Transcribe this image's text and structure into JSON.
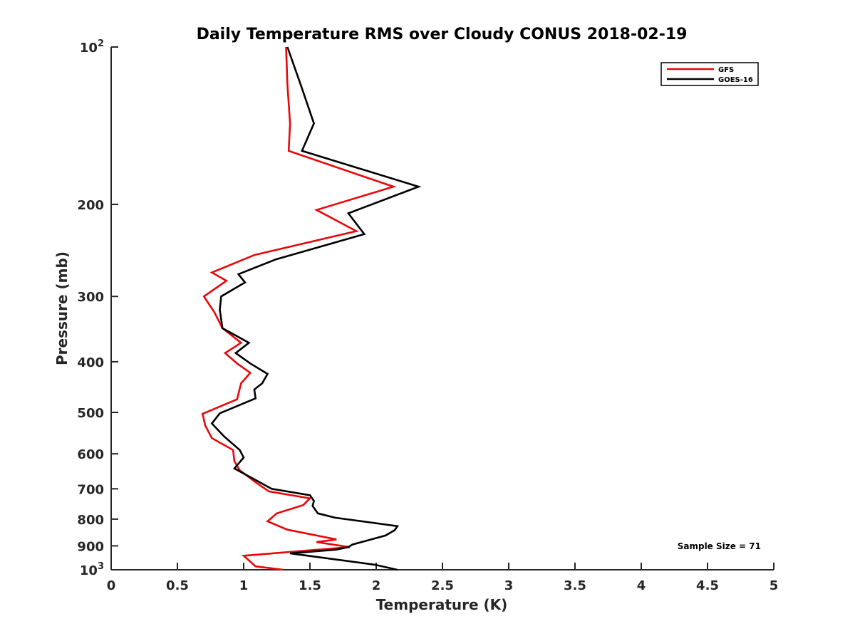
{
  "chart_data": {
    "type": "line",
    "title": "Daily Temperature RMS over Cloudy CONUS 2018-02-19",
    "xlabel": "Temperature (K)",
    "ylabel": "Pressure (mb)",
    "xlim": [
      0,
      5
    ],
    "ylim": [
      100,
      1000
    ],
    "y_scale": "log",
    "y_reversed": true,
    "grid": false,
    "legend_position": "top-right",
    "x_ticks": [
      {
        "value": 0,
        "label": "0"
      },
      {
        "value": 0.5,
        "label": "0.5"
      },
      {
        "value": 1,
        "label": "1"
      },
      {
        "value": 1.5,
        "label": "1.5"
      },
      {
        "value": 2,
        "label": "2"
      },
      {
        "value": 2.5,
        "label": "2.5"
      },
      {
        "value": 3,
        "label": "3"
      },
      {
        "value": 3.5,
        "label": "3.5"
      },
      {
        "value": 4,
        "label": "4"
      },
      {
        "value": 4.5,
        "label": "4.5"
      },
      {
        "value": 5,
        "label": "5"
      }
    ],
    "y_ticks": [
      {
        "value": 100,
        "base": "10",
        "exp": "2"
      },
      {
        "value": 200,
        "label": "200"
      },
      {
        "value": 300,
        "label": "300"
      },
      {
        "value": 400,
        "label": "400"
      },
      {
        "value": 500,
        "label": "500"
      },
      {
        "value": 600,
        "label": "600"
      },
      {
        "value": 700,
        "label": "700"
      },
      {
        "value": 800,
        "label": "800"
      },
      {
        "value": 900,
        "label": "900"
      },
      {
        "value": 1000,
        "base": "10",
        "exp": "3"
      }
    ],
    "series": [
      {
        "name": "GFS",
        "color": "#e8070a",
        "points": [
          [
            1.32,
            100
          ],
          [
            1.33,
            118
          ],
          [
            1.35,
            140
          ],
          [
            1.34,
            158
          ],
          [
            2.13,
            185
          ],
          [
            1.55,
            205
          ],
          [
            1.85,
            225
          ],
          [
            1.08,
            250
          ],
          [
            0.76,
            270
          ],
          [
            0.87,
            280
          ],
          [
            0.7,
            300
          ],
          [
            0.78,
            322
          ],
          [
            0.84,
            345
          ],
          [
            0.98,
            368
          ],
          [
            0.86,
            385
          ],
          [
            0.95,
            403
          ],
          [
            1.05,
            420
          ],
          [
            0.98,
            440
          ],
          [
            0.95,
            472
          ],
          [
            0.69,
            503
          ],
          [
            0.71,
            530
          ],
          [
            0.76,
            560
          ],
          [
            0.92,
            590
          ],
          [
            0.93,
            620
          ],
          [
            0.97,
            645
          ],
          [
            1.09,
            680
          ],
          [
            1.19,
            708
          ],
          [
            1.5,
            730
          ],
          [
            1.45,
            752
          ],
          [
            1.25,
            780
          ],
          [
            1.18,
            808
          ],
          [
            1.33,
            838
          ],
          [
            1.7,
            875
          ],
          [
            1.55,
            885
          ],
          [
            1.8,
            905
          ],
          [
            1.5,
            918
          ],
          [
            1.0,
            940
          ],
          [
            1.07,
            975
          ],
          [
            1.09,
            985
          ],
          [
            1.3,
            1000
          ]
        ]
      },
      {
        "name": "GOES-16",
        "color": "#000000",
        "points": [
          [
            1.33,
            100
          ],
          [
            1.43,
            118
          ],
          [
            1.53,
            140
          ],
          [
            1.44,
            158
          ],
          [
            2.32,
            185
          ],
          [
            1.79,
            208
          ],
          [
            1.91,
            228
          ],
          [
            1.24,
            255
          ],
          [
            0.96,
            272
          ],
          [
            1.01,
            282
          ],
          [
            0.83,
            300
          ],
          [
            0.82,
            318
          ],
          [
            0.84,
            345
          ],
          [
            1.04,
            368
          ],
          [
            0.94,
            385
          ],
          [
            1.05,
            403
          ],
          [
            1.18,
            422
          ],
          [
            1.14,
            440
          ],
          [
            1.08,
            452
          ],
          [
            1.09,
            470
          ],
          [
            0.82,
            502
          ],
          [
            0.76,
            525
          ],
          [
            0.85,
            555
          ],
          [
            0.97,
            590
          ],
          [
            1.0,
            610
          ],
          [
            0.93,
            640
          ],
          [
            1.21,
            700
          ],
          [
            1.5,
            720
          ],
          [
            1.53,
            738
          ],
          [
            1.52,
            755
          ],
          [
            1.56,
            780
          ],
          [
            1.69,
            795
          ],
          [
            2.16,
            825
          ],
          [
            2.14,
            840
          ],
          [
            2.07,
            860
          ],
          [
            1.82,
            895
          ],
          [
            1.79,
            905
          ],
          [
            1.7,
            915
          ],
          [
            1.35,
            930
          ],
          [
            1.99,
            978
          ],
          [
            2.16,
            1000
          ]
        ]
      }
    ],
    "annotation": "Sample Size = 71"
  }
}
